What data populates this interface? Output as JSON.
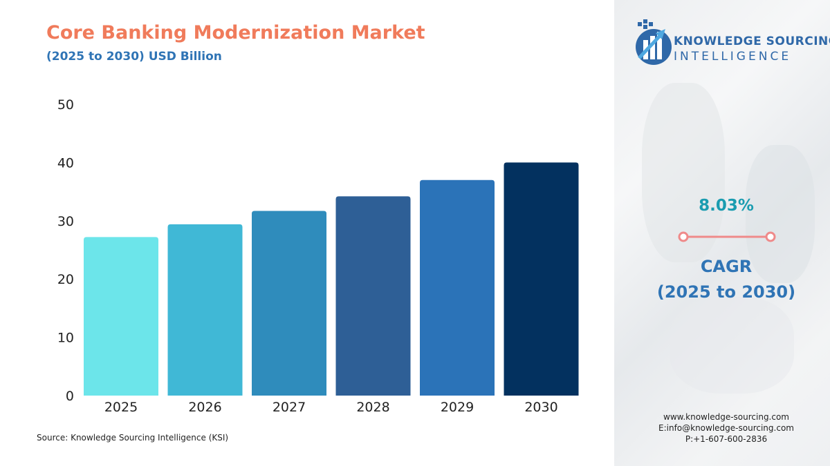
{
  "header": {
    "title": "Core Banking Modernization Market",
    "subtitle": "(2025 to 2030) USD Billion"
  },
  "source": "Source: Knowledge Sourcing Intelligence (KSI)",
  "brand": {
    "line1": "KNOWLEDGE SOURCING",
    "line2": "INTELLIGENCE",
    "logo_icon": "bar-arrow-globe-icon",
    "color": "#2f68a8"
  },
  "cagr": {
    "value": "8.03%",
    "label_line1": "CAGR",
    "label_line2": "(2025 to 2030)"
  },
  "contact": {
    "website": "www.knowledge-sourcing.com",
    "email": "E:info@knowledge-sourcing.com",
    "phone": "P:+1-607-600-2836"
  },
  "colors": {
    "title": "#f07b5b",
    "subtitle": "#2f74b5",
    "cagr_value": "#1a9cb0",
    "cagr_divider": "#ef8a8a"
  },
  "chart_data": {
    "type": "bar",
    "categories": [
      "2025",
      "2026",
      "2027",
      "2028",
      "2029",
      "2030"
    ],
    "values": [
      27.2,
      29.4,
      31.7,
      34.2,
      37.0,
      40.0
    ],
    "ylim": [
      0,
      50
    ],
    "yticks": [
      0,
      10,
      20,
      30,
      40,
      50
    ],
    "grid": false,
    "legend": "none",
    "bar_colors": [
      "#6ce5ea",
      "#40b8d6",
      "#2f8cbc",
      "#2e5f96",
      "#2b73b8",
      "#03315f"
    ]
  }
}
